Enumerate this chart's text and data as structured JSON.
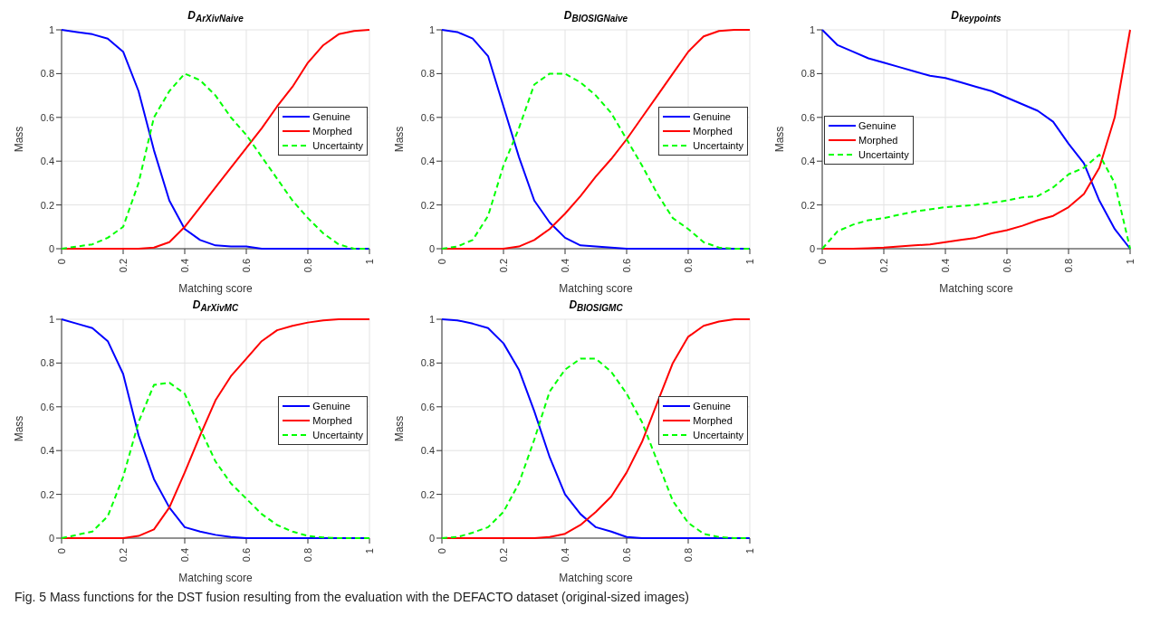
{
  "chart_data": [
    {
      "type": "line",
      "title": "D$_{ArXivNaive}$",
      "xlabel": "Matching score",
      "ylabel": "Mass",
      "x": [
        0,
        0.05,
        0.1,
        0.15,
        0.2,
        0.25,
        0.3,
        0.35,
        0.4,
        0.45,
        0.5,
        0.55,
        0.6,
        0.65,
        0.7,
        0.75,
        0.8,
        0.85,
        0.9,
        0.95,
        1
      ],
      "xlim": [
        0,
        1
      ],
      "xticks": [
        0,
        0.2,
        0.4,
        0.6,
        0.8,
        1
      ],
      "ylim": [
        0,
        1
      ],
      "yticks": [
        0,
        0.2,
        0.4,
        0.6,
        0.8,
        1
      ],
      "grid": true,
      "legend": "right",
      "series": [
        {
          "name": "Genuine",
          "color": "#0000ff",
          "line_style": "solid",
          "values": [
            1,
            0.99,
            0.98,
            0.96,
            0.9,
            0.72,
            0.45,
            0.22,
            0.09,
            0.04,
            0.015,
            0.01,
            0.01,
            0,
            0,
            0,
            0,
            0,
            0,
            0,
            0
          ]
        },
        {
          "name": "Morphed",
          "color": "#ff0000",
          "line_style": "solid",
          "values": [
            0,
            0,
            0,
            0,
            0,
            0,
            0.005,
            0.03,
            0.1,
            0.19,
            0.28,
            0.37,
            0.46,
            0.55,
            0.65,
            0.74,
            0.85,
            0.93,
            0.98,
            0.995,
            1
          ]
        },
        {
          "name": "Uncertainty",
          "color": "#00ff00",
          "line_style": "dashed",
          "values": [
            0,
            0.01,
            0.02,
            0.05,
            0.1,
            0.3,
            0.6,
            0.72,
            0.8,
            0.77,
            0.7,
            0.6,
            0.52,
            0.42,
            0.32,
            0.22,
            0.14,
            0.07,
            0.02,
            0,
            0
          ]
        }
      ]
    },
    {
      "type": "line",
      "title": "D$_{BIOSIGNaive}$",
      "xlabel": "Matching score",
      "ylabel": "Mass",
      "x": [
        0,
        0.05,
        0.1,
        0.15,
        0.2,
        0.25,
        0.3,
        0.35,
        0.4,
        0.45,
        0.5,
        0.55,
        0.6,
        0.65,
        0.7,
        0.75,
        0.8,
        0.85,
        0.9,
        0.95,
        1
      ],
      "xlim": [
        0,
        1
      ],
      "xticks": [
        0,
        0.2,
        0.4,
        0.6,
        0.8,
        1
      ],
      "ylim": [
        0,
        1
      ],
      "yticks": [
        0,
        0.2,
        0.4,
        0.6,
        0.8,
        1
      ],
      "grid": true,
      "legend": "right",
      "series": [
        {
          "name": "Genuine",
          "color": "#0000ff",
          "line_style": "solid",
          "values": [
            1,
            0.99,
            0.96,
            0.88,
            0.65,
            0.42,
            0.22,
            0.12,
            0.05,
            0.015,
            0.01,
            0.005,
            0,
            0,
            0,
            0,
            0,
            0,
            0,
            0,
            0
          ]
        },
        {
          "name": "Morphed",
          "color": "#ff0000",
          "line_style": "solid",
          "values": [
            0,
            0,
            0,
            0,
            0,
            0.01,
            0.04,
            0.09,
            0.16,
            0.24,
            0.33,
            0.41,
            0.5,
            0.6,
            0.7,
            0.8,
            0.9,
            0.97,
            0.995,
            1,
            1
          ]
        },
        {
          "name": "Uncertainty",
          "color": "#00ff00",
          "line_style": "dashed",
          "values": [
            0,
            0.01,
            0.04,
            0.15,
            0.38,
            0.55,
            0.75,
            0.8,
            0.8,
            0.76,
            0.7,
            0.62,
            0.5,
            0.38,
            0.25,
            0.14,
            0.09,
            0.03,
            0.005,
            0,
            0
          ]
        }
      ]
    },
    {
      "type": "line",
      "title": "D$_{keypoints}$",
      "xlabel": "Matching score",
      "ylabel": "Mass",
      "x": [
        0,
        0.05,
        0.1,
        0.15,
        0.2,
        0.25,
        0.3,
        0.35,
        0.4,
        0.45,
        0.5,
        0.55,
        0.6,
        0.65,
        0.7,
        0.75,
        0.8,
        0.85,
        0.9,
        0.95,
        1
      ],
      "xlim": [
        0,
        1
      ],
      "xticks": [
        0,
        0.2,
        0.4,
        0.6,
        0.8,
        1
      ],
      "ylim": [
        0,
        1
      ],
      "yticks": [
        0,
        0.2,
        0.4,
        0.6,
        0.8,
        1
      ],
      "grid": true,
      "legend": "left",
      "series": [
        {
          "name": "Genuine",
          "color": "#0000ff",
          "line_style": "solid",
          "values": [
            1,
            0.93,
            0.9,
            0.87,
            0.85,
            0.83,
            0.81,
            0.79,
            0.78,
            0.76,
            0.74,
            0.72,
            0.69,
            0.66,
            0.63,
            0.58,
            0.48,
            0.39,
            0.22,
            0.09,
            0
          ]
        },
        {
          "name": "Morphed",
          "color": "#ff0000",
          "line_style": "solid",
          "values": [
            0,
            0,
            0,
            0.002,
            0.005,
            0.01,
            0.015,
            0.02,
            0.03,
            0.04,
            0.05,
            0.07,
            0.085,
            0.105,
            0.13,
            0.15,
            0.19,
            0.25,
            0.37,
            0.6,
            1
          ]
        },
        {
          "name": "Uncertainty",
          "color": "#00ff00",
          "line_style": "dashed",
          "values": [
            0,
            0.08,
            0.11,
            0.13,
            0.14,
            0.155,
            0.17,
            0.18,
            0.19,
            0.195,
            0.2,
            0.21,
            0.22,
            0.235,
            0.24,
            0.28,
            0.34,
            0.37,
            0.43,
            0.3,
            0
          ]
        }
      ]
    },
    {
      "type": "line",
      "title": "D$_{ArXivMC}$",
      "xlabel": "Matching score",
      "ylabel": "Mass",
      "x": [
        0,
        0.05,
        0.1,
        0.15,
        0.2,
        0.25,
        0.3,
        0.35,
        0.4,
        0.45,
        0.5,
        0.55,
        0.6,
        0.65,
        0.7,
        0.75,
        0.8,
        0.85,
        0.9,
        0.95,
        1
      ],
      "xlim": [
        0,
        1
      ],
      "xticks": [
        0,
        0.2,
        0.4,
        0.6,
        0.8,
        1
      ],
      "ylim": [
        0,
        1
      ],
      "yticks": [
        0,
        0.2,
        0.4,
        0.6,
        0.8,
        1
      ],
      "grid": true,
      "legend": "right",
      "series": [
        {
          "name": "Genuine",
          "color": "#0000ff",
          "line_style": "solid",
          "values": [
            1,
            0.98,
            0.96,
            0.9,
            0.75,
            0.47,
            0.27,
            0.14,
            0.05,
            0.03,
            0.015,
            0.005,
            0,
            0,
            0,
            0,
            0,
            0,
            0,
            0,
            0
          ]
        },
        {
          "name": "Morphed",
          "color": "#ff0000",
          "line_style": "solid",
          "values": [
            0,
            0,
            0,
            0,
            0,
            0.01,
            0.04,
            0.14,
            0.3,
            0.47,
            0.63,
            0.74,
            0.82,
            0.9,
            0.95,
            0.97,
            0.985,
            0.995,
            1,
            1,
            1
          ]
        },
        {
          "name": "Uncertainty",
          "color": "#00ff00",
          "line_style": "dashed",
          "values": [
            0,
            0.015,
            0.03,
            0.1,
            0.28,
            0.53,
            0.7,
            0.71,
            0.66,
            0.5,
            0.35,
            0.25,
            0.18,
            0.11,
            0.06,
            0.03,
            0.01,
            0.003,
            0,
            0,
            0
          ]
        }
      ]
    },
    {
      "type": "line",
      "title": "D$_{BIOSIGMC}$",
      "xlabel": "Matching score",
      "ylabel": "Mass",
      "x": [
        0,
        0.05,
        0.1,
        0.15,
        0.2,
        0.25,
        0.3,
        0.35,
        0.4,
        0.45,
        0.5,
        0.55,
        0.6,
        0.65,
        0.7,
        0.75,
        0.8,
        0.85,
        0.9,
        0.95,
        1
      ],
      "xlim": [
        0,
        1
      ],
      "xticks": [
        0,
        0.2,
        0.4,
        0.6,
        0.8,
        1
      ],
      "ylim": [
        0,
        1
      ],
      "yticks": [
        0,
        0.2,
        0.4,
        0.6,
        0.8,
        1
      ],
      "grid": true,
      "legend": "right",
      "annotations": [
        "Fig. 5 Mass functions for the DST fusion resulting from the evaluation with the DEFACTO dataset (original-sized images)"
      ],
      "series": [
        {
          "name": "Genuine",
          "color": "#0000ff",
          "line_style": "solid",
          "values": [
            1,
            0.995,
            0.98,
            0.96,
            0.89,
            0.77,
            0.58,
            0.37,
            0.2,
            0.11,
            0.05,
            0.03,
            0.005,
            0,
            0,
            0,
            0,
            0,
            0,
            0,
            0
          ]
        },
        {
          "name": "Morphed",
          "color": "#ff0000",
          "line_style": "solid",
          "values": [
            0,
            0,
            0,
            0,
            0,
            0,
            0,
            0.005,
            0.02,
            0.06,
            0.12,
            0.19,
            0.3,
            0.44,
            0.62,
            0.8,
            0.92,
            0.97,
            0.99,
            1,
            1
          ]
        },
        {
          "name": "Uncertainty",
          "color": "#00ff00",
          "line_style": "dashed",
          "values": [
            0,
            0.005,
            0.025,
            0.05,
            0.12,
            0.25,
            0.45,
            0.67,
            0.77,
            0.82,
            0.82,
            0.76,
            0.66,
            0.53,
            0.35,
            0.17,
            0.07,
            0.02,
            0.005,
            0,
            0
          ]
        }
      ]
    }
  ]
}
